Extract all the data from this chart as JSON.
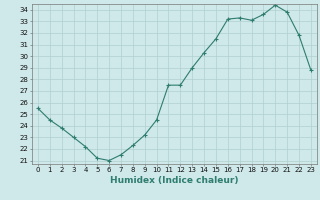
{
  "x": [
    0,
    1,
    2,
    3,
    4,
    5,
    6,
    7,
    8,
    9,
    10,
    11,
    12,
    13,
    14,
    15,
    16,
    17,
    18,
    19,
    20,
    21,
    22,
    23
  ],
  "y": [
    25.5,
    24.5,
    23.8,
    23.0,
    22.2,
    21.2,
    21.0,
    21.5,
    22.3,
    23.2,
    24.5,
    27.5,
    27.5,
    29.0,
    30.3,
    31.5,
    33.2,
    33.3,
    33.1,
    33.6,
    34.4,
    33.8,
    31.8,
    28.8
  ],
  "xlabel": "Humidex (Indice chaleur)",
  "line_color": "#2e7d6e",
  "bg_color": "#cfe8ea",
  "grid_color": "#b0d0d0",
  "ylim": [
    21,
    34
  ],
  "xlim": [
    -0.5,
    23.5
  ],
  "yticks": [
    21,
    22,
    23,
    24,
    25,
    26,
    27,
    28,
    29,
    30,
    31,
    32,
    33,
    34
  ],
  "xticks": [
    0,
    1,
    2,
    3,
    4,
    5,
    6,
    7,
    8,
    9,
    10,
    11,
    12,
    13,
    14,
    15,
    16,
    17,
    18,
    19,
    20,
    21,
    22,
    23
  ],
  "tick_fontsize": 5.0,
  "xlabel_fontsize": 6.5
}
